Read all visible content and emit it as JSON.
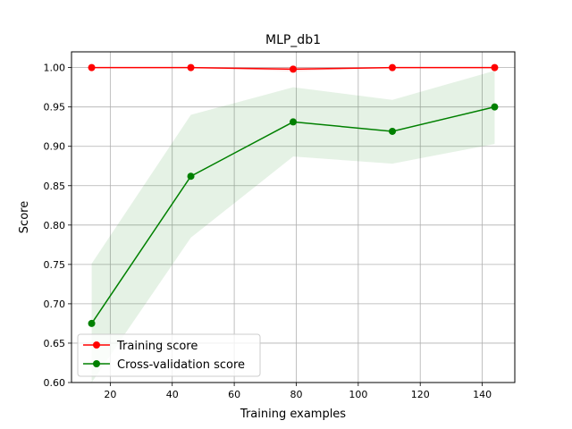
{
  "chart_data": {
    "type": "line",
    "title": "MLP_db1",
    "xlabel": "Training examples",
    "ylabel": "Score",
    "xlim": [
      7.5,
      150.5
    ],
    "ylim": [
      0.6,
      1.02
    ],
    "grid": true,
    "legend_position": "lower-left",
    "x": [
      14,
      46,
      79,
      111,
      144
    ],
    "x_ticks": [
      20,
      40,
      60,
      80,
      100,
      120,
      140
    ],
    "x_tick_labels": [
      "20",
      "40",
      "60",
      "80",
      "100",
      "120",
      "140"
    ],
    "y_ticks": [
      0.6,
      0.65,
      0.7,
      0.75,
      0.8,
      0.85,
      0.9,
      0.95,
      1.0
    ],
    "y_tick_labels": [
      "0.60",
      "0.65",
      "0.70",
      "0.75",
      "0.80",
      "0.85",
      "0.90",
      "0.95",
      "1.00"
    ],
    "series": [
      {
        "name": "Training score",
        "color": "#ff0000",
        "values": [
          1.0,
          1.0,
          0.998,
          1.0,
          1.0
        ],
        "band_lower": [
          1.0,
          1.0,
          0.995,
          1.0,
          1.0
        ],
        "band_upper": [
          1.0,
          1.0,
          1.001,
          1.0,
          1.0
        ],
        "band_color": "#ff0000"
      },
      {
        "name": "Cross-validation score",
        "color": "#008000",
        "values": [
          0.675,
          0.862,
          0.931,
          0.919,
          0.95
        ],
        "band_lower": [
          0.6,
          0.784,
          0.887,
          0.878,
          0.903
        ],
        "band_upper": [
          0.751,
          0.94,
          0.975,
          0.959,
          0.996
        ],
        "band_color": "#008000"
      }
    ]
  }
}
